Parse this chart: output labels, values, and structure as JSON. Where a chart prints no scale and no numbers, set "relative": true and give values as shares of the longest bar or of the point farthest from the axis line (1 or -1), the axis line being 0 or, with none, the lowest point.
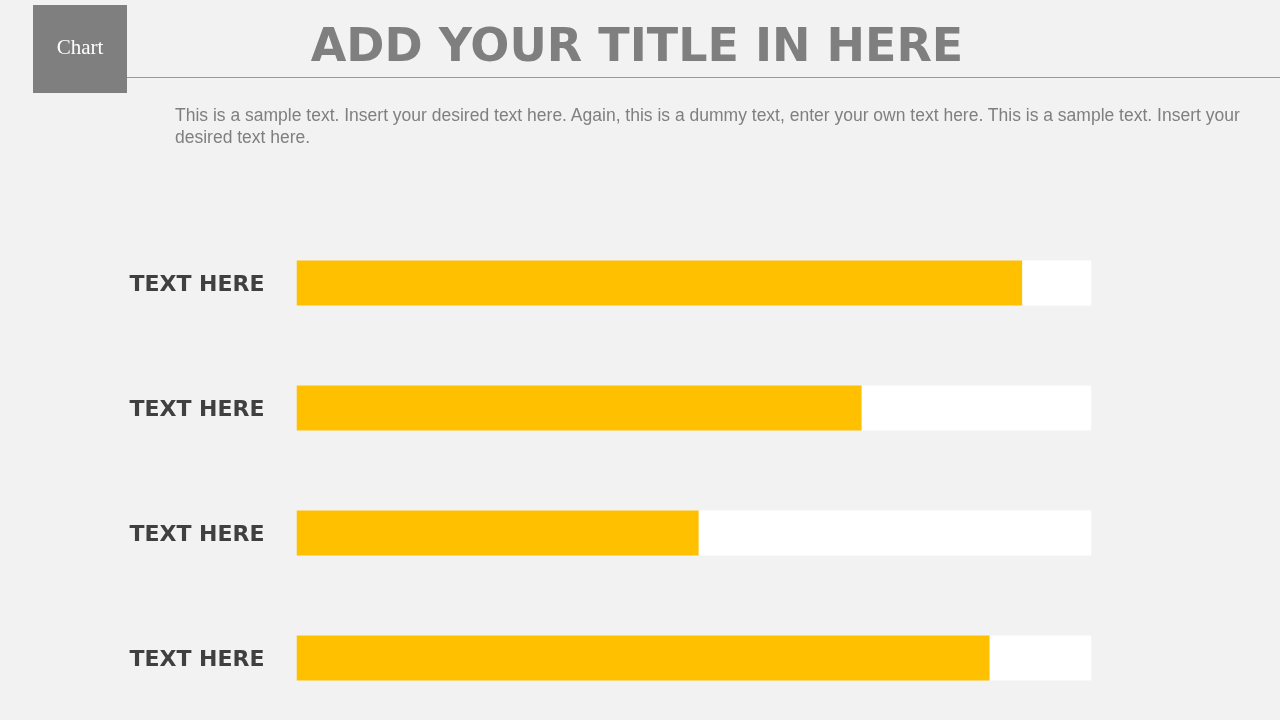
{
  "chart_data": {
    "type": "bar",
    "orientation": "horizontal",
    "stacked": true,
    "relative": true,
    "title": "ADD YOUR TITLE IN HERE",
    "subtitle": "This is a sample text. Insert your desired text here. Again, this is a dummy text, enter your own text here. This is a sample text. Insert your desired text here.",
    "annotations": [
      "Chart"
    ],
    "categories": [
      "TEXT HERE",
      "TEXT HERE",
      "TEXT HERE",
      "TEXT HERE"
    ],
    "series": [
      {
        "color": "#ffc000",
        "values": [
          0.913,
          0.711,
          0.506,
          0.872
        ]
      },
      {
        "color": "#ffffff",
        "values": [
          0.087,
          0.289,
          0.494,
          0.128
        ]
      }
    ],
    "grid": false
  }
}
